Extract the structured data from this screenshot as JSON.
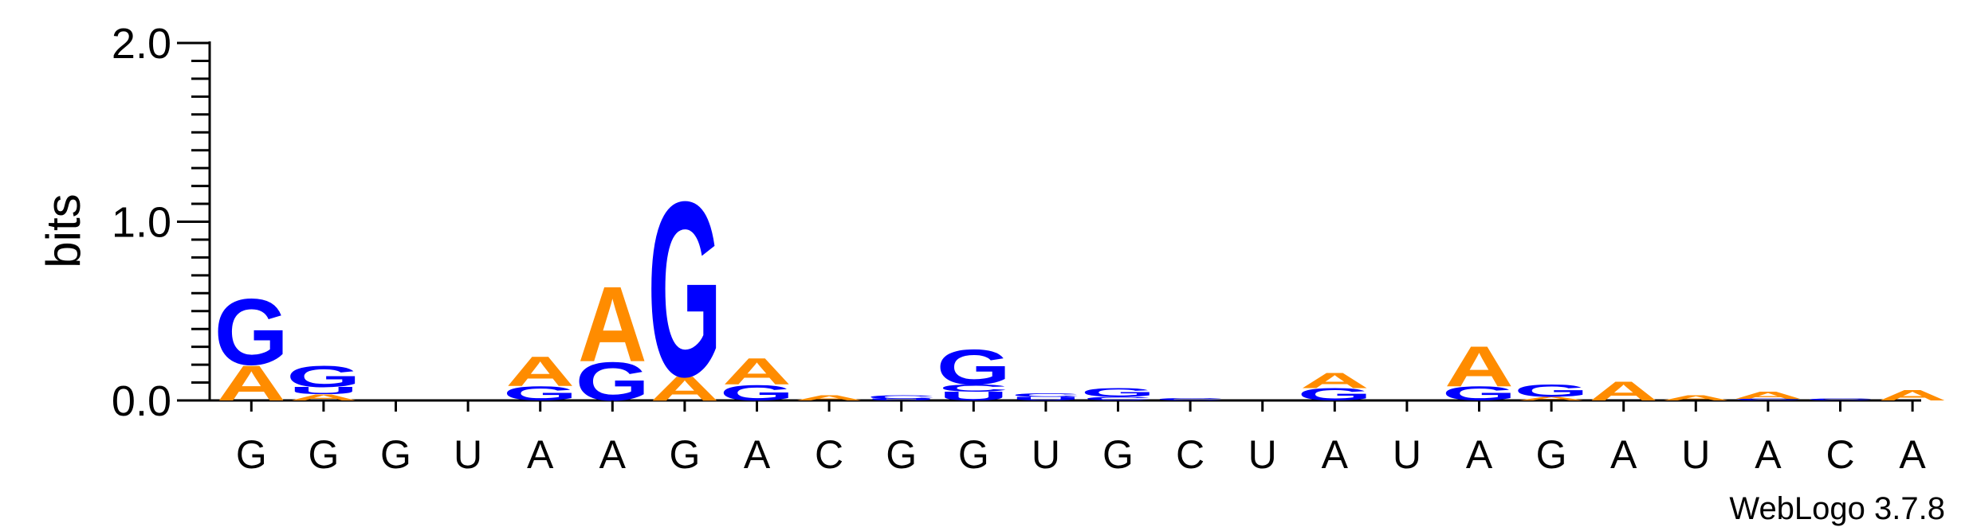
{
  "chart_data": {
    "type": "sequence-logo",
    "title": "",
    "ylabel": "bits",
    "xlabel": "",
    "ylim": [
      0,
      2.0
    ],
    "yticks": [
      {
        "value": 2.0,
        "label": "2.0"
      },
      {
        "value": 1.0,
        "label": "1.0"
      },
      {
        "value": 0.0,
        "label": "0.0"
      }
    ],
    "colors": {
      "A": "#FF8C00",
      "C": "#0000FF",
      "G": "#0000FF",
      "U": "#0000FF"
    },
    "positions": [
      {
        "label": "G",
        "stack": [
          {
            "letter": "A",
            "bits": 0.2
          },
          {
            "letter": "G",
            "bits": 0.38
          }
        ]
      },
      {
        "label": "G",
        "stack": [
          {
            "letter": "A",
            "bits": 0.035
          },
          {
            "letter": "U",
            "bits": 0.04
          },
          {
            "letter": "G",
            "bits": 0.12
          }
        ]
      },
      {
        "label": "G",
        "stack": []
      },
      {
        "label": "U",
        "stack": []
      },
      {
        "label": "A",
        "stack": [
          {
            "letter": "G",
            "bits": 0.08
          },
          {
            "letter": "A",
            "bits": 0.17
          }
        ]
      },
      {
        "label": "A",
        "stack": [
          {
            "letter": "G",
            "bits": 0.22
          },
          {
            "letter": "A",
            "bits": 0.43
          }
        ]
      },
      {
        "label": "G",
        "stack": [
          {
            "letter": "A",
            "bits": 0.14
          },
          {
            "letter": "G",
            "bits": 1.0
          }
        ]
      },
      {
        "label": "A",
        "stack": [
          {
            "letter": "G",
            "bits": 0.09
          },
          {
            "letter": "A",
            "bits": 0.15
          }
        ]
      },
      {
        "label": "C",
        "stack": [
          {
            "letter": "A",
            "bits": 0.03
          }
        ]
      },
      {
        "label": "G",
        "stack": [
          {
            "letter": "U",
            "bits": 0.01
          },
          {
            "letter": "C",
            "bits": 0.02
          }
        ]
      },
      {
        "label": "G",
        "stack": [
          {
            "letter": "U",
            "bits": 0.05
          },
          {
            "letter": "C",
            "bits": 0.04
          },
          {
            "letter": "G",
            "bits": 0.2
          }
        ]
      },
      {
        "label": "U",
        "stack": [
          {
            "letter": "U",
            "bits": 0.02
          },
          {
            "letter": "C",
            "bits": 0.02
          }
        ]
      },
      {
        "label": "G",
        "stack": [
          {
            "letter": "C",
            "bits": 0.02
          },
          {
            "letter": "G",
            "bits": 0.05
          }
        ]
      },
      {
        "label": "C",
        "stack": [
          {
            "letter": "C",
            "bits": 0.015
          }
        ]
      },
      {
        "label": "U",
        "stack": []
      },
      {
        "label": "A",
        "stack": [
          {
            "letter": "G",
            "bits": 0.07
          },
          {
            "letter": "A",
            "bits": 0.09
          }
        ]
      },
      {
        "label": "U",
        "stack": []
      },
      {
        "label": "A",
        "stack": [
          {
            "letter": "G",
            "bits": 0.08
          },
          {
            "letter": "A",
            "bits": 0.23
          }
        ]
      },
      {
        "label": "G",
        "stack": [
          {
            "letter": "A",
            "bits": 0.02
          },
          {
            "letter": "G",
            "bits": 0.07
          }
        ]
      },
      {
        "label": "A",
        "stack": [
          {
            "letter": "A",
            "bits": 0.11
          }
        ]
      },
      {
        "label": "U",
        "stack": [
          {
            "letter": "A",
            "bits": 0.03
          }
        ]
      },
      {
        "label": "A",
        "stack": [
          {
            "letter": "C",
            "bits": 0.01
          },
          {
            "letter": "A",
            "bits": 0.04
          }
        ]
      },
      {
        "label": "C",
        "stack": [
          {
            "letter": "C",
            "bits": 0.01
          }
        ]
      },
      {
        "label": "A",
        "stack": [
          {
            "letter": "A",
            "bits": 0.06
          }
        ]
      }
    ]
  },
  "footer": {
    "credit": "WebLogo 3.7.8"
  }
}
